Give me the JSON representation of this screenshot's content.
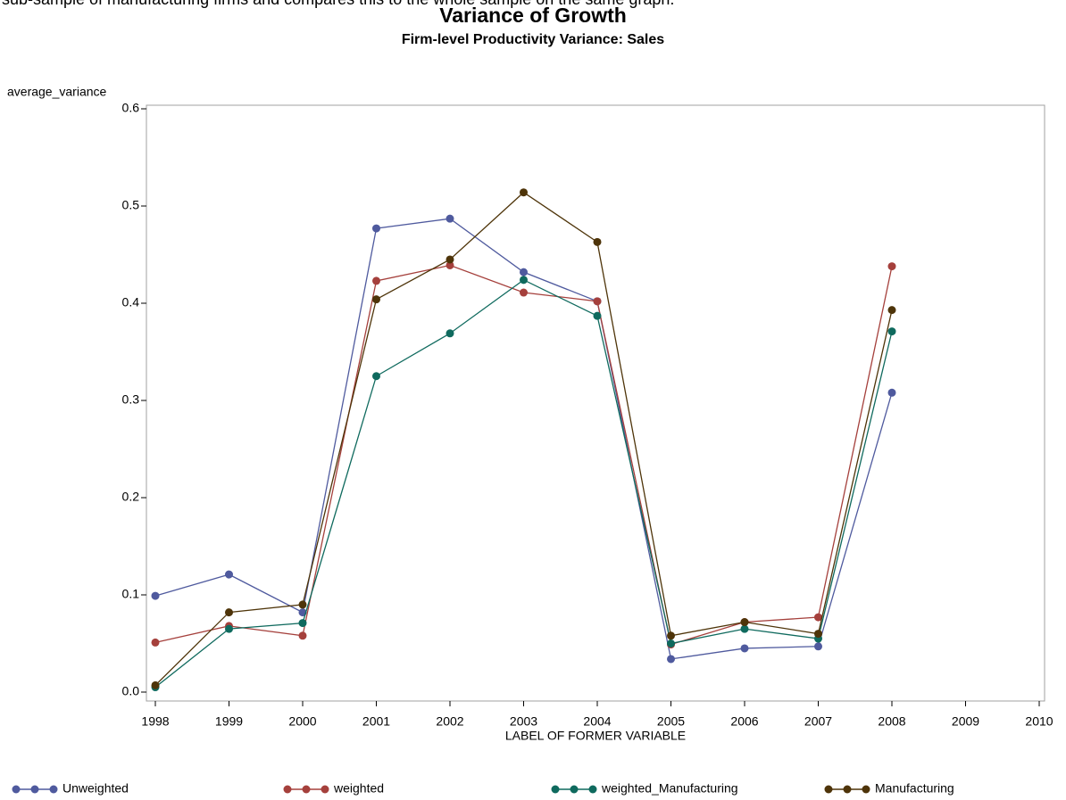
{
  "caption": "sub-sample of manufacturing firms and compares this to the whole sample on the same graph.",
  "chart_data": {
    "type": "line",
    "title": "Variance of Growth",
    "subtitle": "Firm-level Productivity Variance: Sales",
    "y_label": "average_variance",
    "x_label": "LABEL OF FORMER VARIABLE",
    "x": [
      1998,
      1999,
      2000,
      2001,
      2002,
      2003,
      2004,
      2005,
      2006,
      2007,
      2008
    ],
    "series": [
      {
        "name": "Unweighted",
        "color": "#4f5a9e",
        "values": [
          0.099,
          0.121,
          0.082,
          0.477,
          0.487,
          0.432,
          0.402,
          0.034,
          0.045,
          0.047,
          0.308
        ]
      },
      {
        "name": "weighted",
        "color": "#a5403c",
        "values": [
          0.051,
          0.068,
          0.058,
          0.423,
          0.439,
          0.411,
          0.402,
          0.049,
          0.072,
          0.077,
          0.438
        ]
      },
      {
        "name": "weighted_Manufacturing",
        "color": "#0f6a5e",
        "values": [
          0.005,
          0.065,
          0.071,
          0.325,
          0.369,
          0.424,
          0.387,
          0.05,
          0.065,
          0.055,
          0.371
        ]
      },
      {
        "name": "Manufacturing",
        "color": "#4e3409",
        "values": [
          0.007,
          0.082,
          0.09,
          0.404,
          0.445,
          0.514,
          0.463,
          0.058,
          0.072,
          0.06,
          0.393
        ]
      }
    ],
    "xlim": [
      1998,
      2010
    ],
    "xticks": [
      1998,
      1999,
      2000,
      2001,
      2002,
      2003,
      2004,
      2005,
      2006,
      2007,
      2008,
      2009,
      2010
    ],
    "ylim": [
      0,
      0.6
    ],
    "yticks": [
      {
        "value": 0,
        "label": "0.0"
      },
      0.1,
      0.2,
      0.3,
      0.4,
      0.5,
      0.6
    ],
    "grid": false,
    "legend": "bottom"
  }
}
